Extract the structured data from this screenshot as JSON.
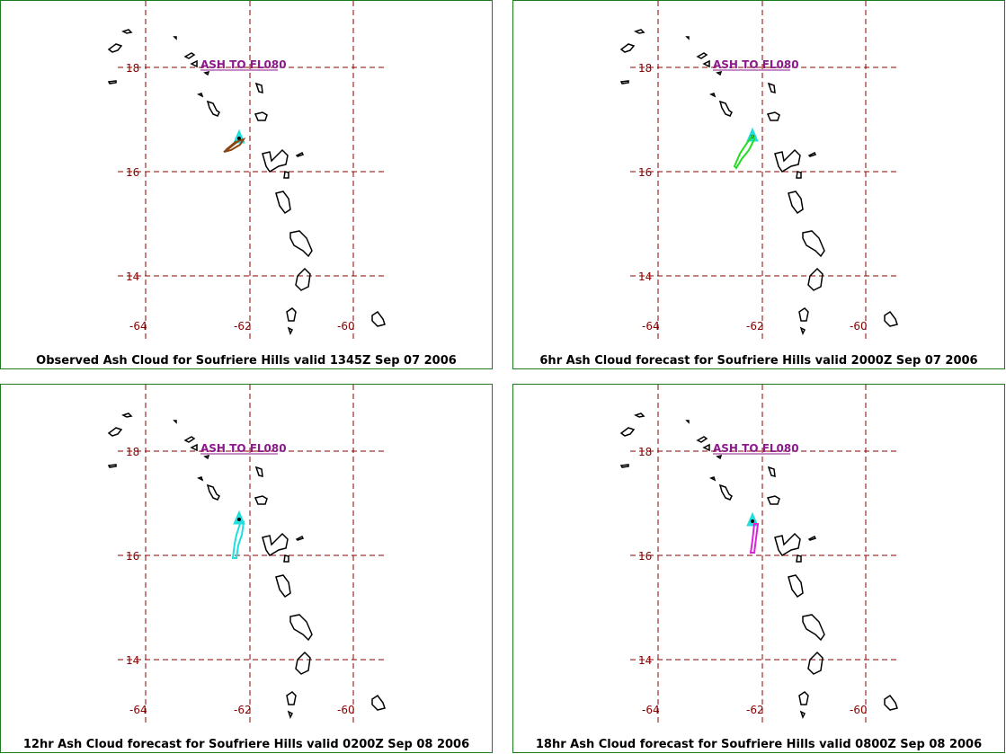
{
  "panels": [
    {
      "caption": "Observed Ash Cloud for Soufriere  Hills valid 1345Z Sep 07 2006",
      "ash_label": "ASH TO FL080",
      "cloud_color": "#8b4513",
      "cloud_shape": "observed"
    },
    {
      "caption": "6hr Ash Cloud forecast for Soufriere  Hills valid 2000Z Sep 07 2006",
      "ash_label": "ASH TO FL080",
      "cloud_color": "#22dd22",
      "cloud_shape": "f6"
    },
    {
      "caption": "12hr Ash Cloud forecast for Soufriere  Hills valid 0200Z Sep 08 2006",
      "ash_label": "ASH TO FL080",
      "cloud_color": "#22dddd",
      "cloud_shape": "f12"
    },
    {
      "caption": "18hr Ash Cloud forecast for Soufriere  Hills valid 0800Z Sep 08 2006",
      "ash_label": "ASH TO FL080",
      "cloud_color": "#dd22dd",
      "cloud_shape": "f18"
    }
  ],
  "map": {
    "lat_ticks": [
      "18",
      "16",
      "14"
    ],
    "lon_ticks": [
      "-64",
      "-62",
      "-60"
    ],
    "grid_color": "#8b0000",
    "volcano_marker_color": "#22dddd",
    "coast_color": "#000000"
  }
}
